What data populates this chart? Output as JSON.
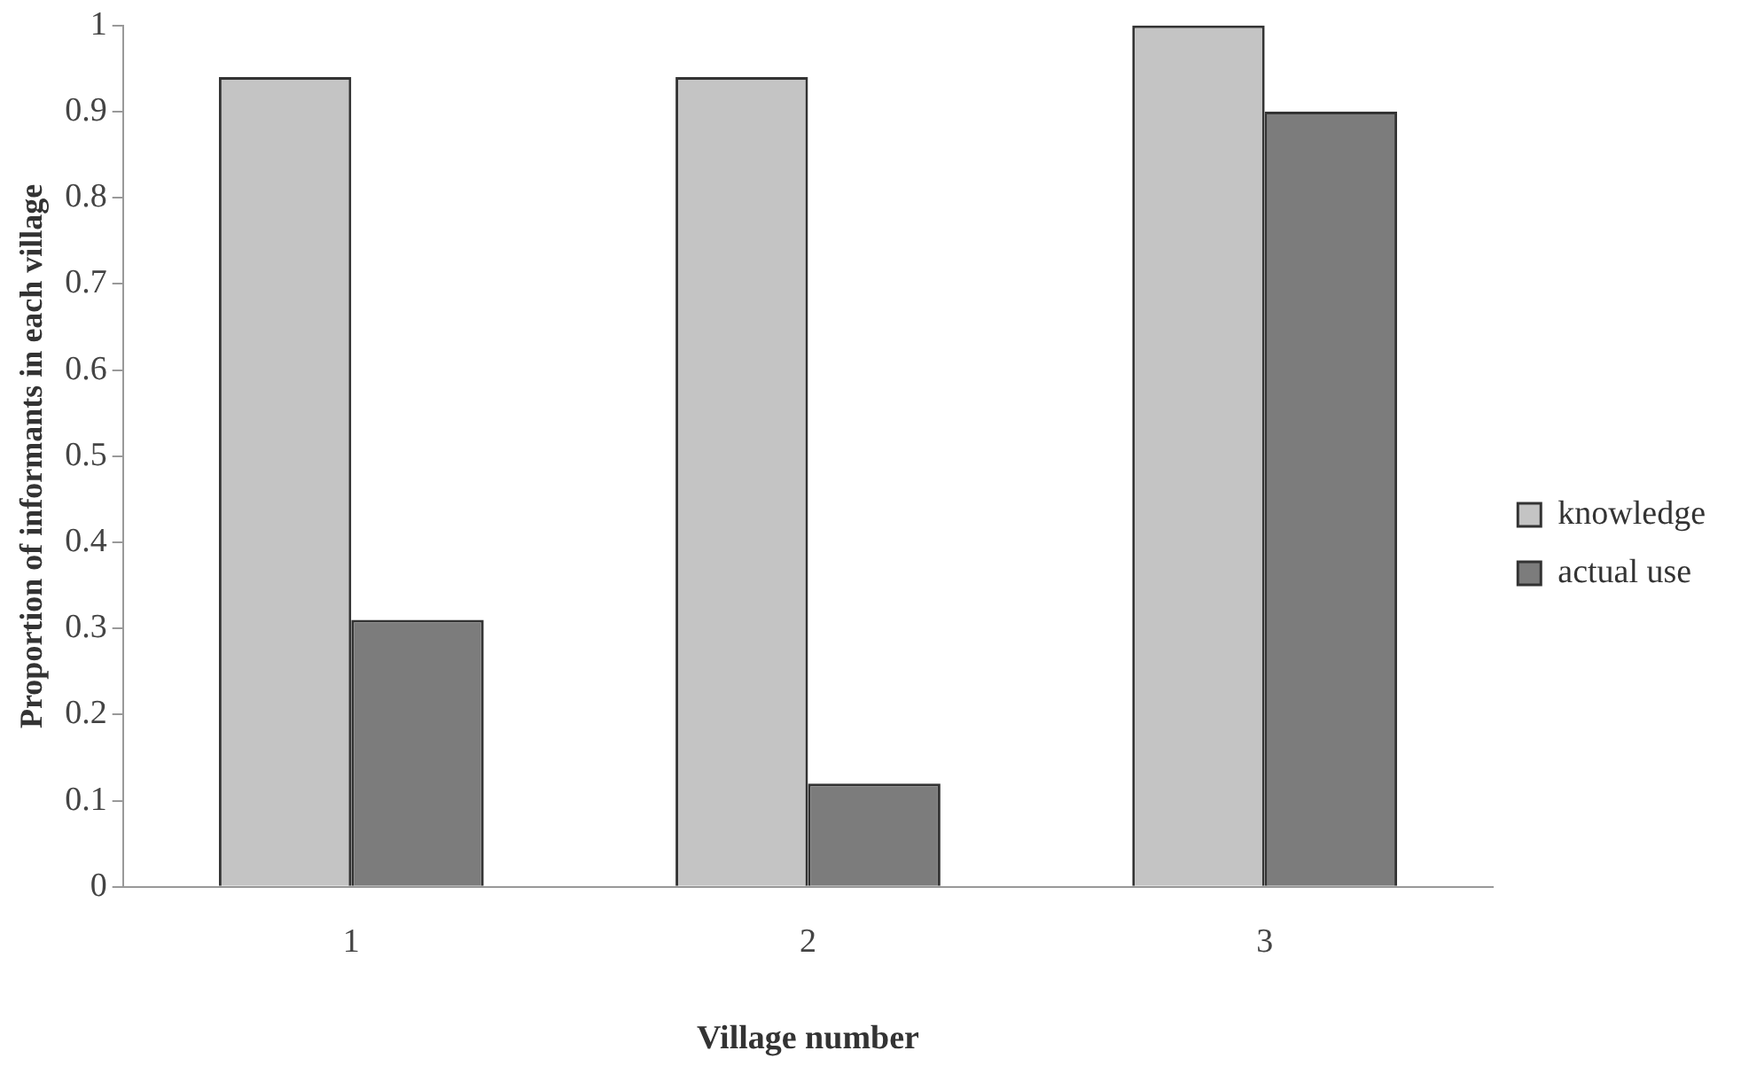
{
  "chart_data": {
    "type": "bar",
    "xlabel": "Village number",
    "ylabel": "Proportion of informants in each village",
    "categories": [
      "1",
      "2",
      "3"
    ],
    "series": [
      {
        "name": "knowledge",
        "color": "#c4c4c4",
        "values": [
          0.94,
          0.94,
          1.0
        ]
      },
      {
        "name": "actual use",
        "color": "#7c7c7c",
        "values": [
          0.31,
          0.12,
          0.9
        ]
      }
    ],
    "ylim": [
      0,
      1
    ],
    "yticks": [
      0,
      {
        "value": 0.1,
        "label": "0.1"
      },
      {
        "value": 0.2,
        "label": "0.2"
      },
      {
        "value": 0.3,
        "label": "0.3"
      },
      {
        "value": 0.4,
        "label": "0.4"
      },
      {
        "value": 0.5,
        "label": "0.5"
      },
      {
        "value": 0.6,
        "label": "0.6"
      },
      {
        "value": 0.7,
        "label": "0.7"
      },
      {
        "value": 0.8,
        "label": "0.8"
      },
      {
        "value": 0.9,
        "label": "0.9"
      },
      1
    ],
    "grid": false,
    "legend": "right"
  }
}
